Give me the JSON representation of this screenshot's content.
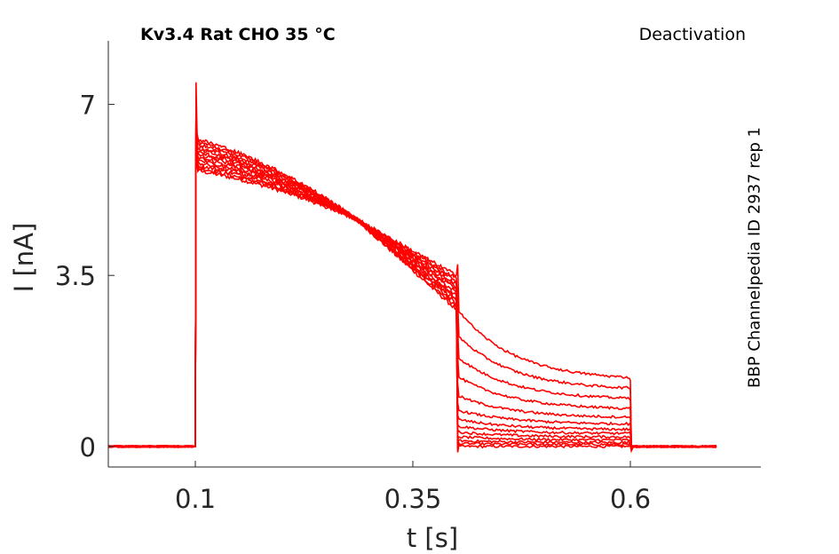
{
  "chart_data": {
    "type": "line",
    "title": "Kv3.4  Rat  CHO  35 °C",
    "subtitle": "Deactivation",
    "side_annotation": "BBP Channelpedia ID 2937 rep 1",
    "xlabel": "t [s]",
    "ylabel": "I [nA]",
    "xlim": [
      0.0,
      0.75
    ],
    "ylim": [
      -0.42,
      8.3
    ],
    "xticks": [
      0.1,
      0.35,
      0.6
    ],
    "xtick_labels": [
      "0.1",
      "0.35",
      "0.6"
    ],
    "yticks": [
      0,
      3.5,
      7
    ],
    "ytick_labels": [
      "0",
      "3.5",
      "7"
    ],
    "grid": false,
    "legend": "none",
    "color": "#ff0000",
    "series_count": 13,
    "pulse_start": 0.1,
    "pulse_end": 0.4,
    "tail_end": 0.6,
    "recording_end": 0.7,
    "peak": 7.45,
    "pulse_start_range": [
      5.65,
      6.3
    ],
    "pulse_mid": [
      0.285,
      4.65
    ],
    "pulse_end_range": [
      2.8,
      3.5
    ],
    "tail_levels": [
      0.0,
      0.06,
      0.12,
      0.2,
      0.3,
      0.42,
      0.56,
      0.75,
      1.05,
      1.45,
      1.85,
      2.3,
      2.85
    ],
    "tail_end_levels": [
      0.0,
      0.04,
      0.08,
      0.13,
      0.19,
      0.26,
      0.34,
      0.45,
      0.58,
      0.75,
      0.95,
      1.15,
      1.35
    ]
  }
}
